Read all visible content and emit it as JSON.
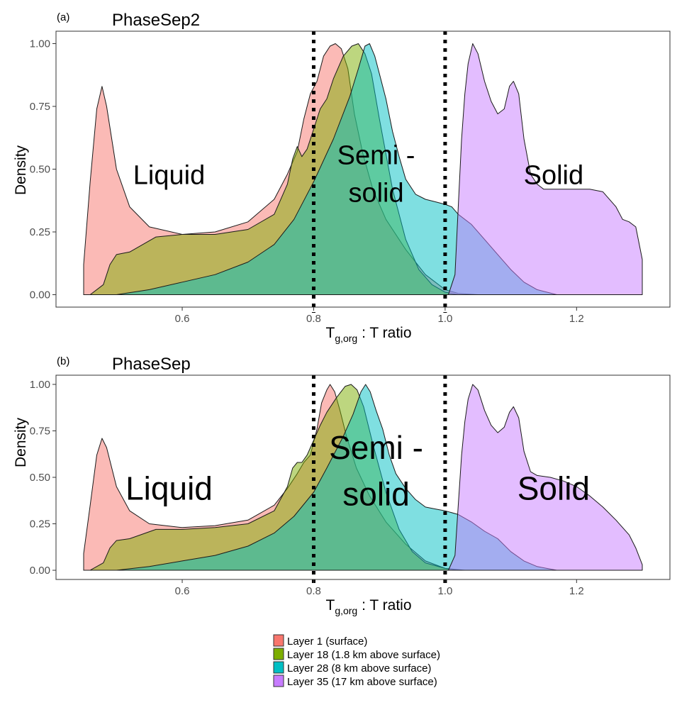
{
  "colors": {
    "series": [
      "#F8766D",
      "#7CAE00",
      "#00BFC4",
      "#C77CFF"
    ],
    "fill_opacity": 0.5,
    "threshold_line": "#000000",
    "panel_border": "#333333"
  },
  "legend": {
    "position": "bottom",
    "items": [
      "Layer 1 (surface)",
      "Layer 18 (1.8 km above surface)",
      "Layer 28 (8 km above surface)",
      "Layer 35 (17 km above surface)"
    ]
  },
  "chart_data": [
    {
      "type": "area",
      "panel_tag": "(a)",
      "title": "PhaseSep2",
      "xlabel_main": "T",
      "xlabel_sub": "g,org",
      "xlabel_rest": " : T ratio",
      "ylabel": "Density",
      "xlim": [
        0.45,
        1.3
      ],
      "ylim": [
        0,
        1.0
      ],
      "x_ticks": [
        "0.6",
        "0.8",
        "1.0",
        "1.2"
      ],
      "y_ticks": [
        "0.00",
        "0.25",
        "0.50",
        "0.75",
        "1.00"
      ],
      "grid": false,
      "thresholds": [
        0.8,
        1.0
      ],
      "regions": [
        {
          "label": "Liquid",
          "x": 0.58,
          "y": 0.44
        },
        {
          "label": "Semi -",
          "x": 0.895,
          "y": 0.52
        },
        {
          "label": "solid",
          "x": 0.895,
          "y": 0.37
        },
        {
          "label": "Solid",
          "x": 1.165,
          "y": 0.44
        }
      ],
      "series": [
        {
          "points": [
            [
              0.45,
              0.12
            ],
            [
              0.46,
              0.45
            ],
            [
              0.47,
              0.74
            ],
            [
              0.478,
              0.83
            ],
            [
              0.485,
              0.75
            ],
            [
              0.5,
              0.5
            ],
            [
              0.52,
              0.35
            ],
            [
              0.55,
              0.27
            ],
            [
              0.6,
              0.24
            ],
            [
              0.65,
              0.25
            ],
            [
              0.7,
              0.29
            ],
            [
              0.74,
              0.38
            ],
            [
              0.76,
              0.48
            ],
            [
              0.775,
              0.57
            ],
            [
              0.785,
              0.7
            ],
            [
              0.795,
              0.8
            ],
            [
              0.805,
              0.85
            ],
            [
              0.815,
              0.95
            ],
            [
              0.825,
              0.99
            ],
            [
              0.833,
              1.0
            ],
            [
              0.842,
              0.98
            ],
            [
              0.852,
              0.9
            ],
            [
              0.862,
              0.72
            ],
            [
              0.875,
              0.56
            ],
            [
              0.89,
              0.42
            ],
            [
              0.91,
              0.3
            ],
            [
              0.94,
              0.18
            ],
            [
              0.97,
              0.08
            ],
            [
              1.0,
              0.02
            ],
            [
              1.02,
              0.005
            ],
            [
              1.05,
              0.0
            ]
          ]
        },
        {
          "points": [
            [
              0.45,
              0.0
            ],
            [
              0.46,
              0.0
            ],
            [
              0.48,
              0.04
            ],
            [
              0.49,
              0.12
            ],
            [
              0.5,
              0.16
            ],
            [
              0.52,
              0.17
            ],
            [
              0.56,
              0.23
            ],
            [
              0.6,
              0.24
            ],
            [
              0.65,
              0.24
            ],
            [
              0.7,
              0.26
            ],
            [
              0.74,
              0.32
            ],
            [
              0.76,
              0.44
            ],
            [
              0.768,
              0.54
            ],
            [
              0.775,
              0.59
            ],
            [
              0.782,
              0.55
            ],
            [
              0.79,
              0.58
            ],
            [
              0.8,
              0.66
            ],
            [
              0.81,
              0.74
            ],
            [
              0.82,
              0.78
            ],
            [
              0.83,
              0.86
            ],
            [
              0.845,
              0.95
            ],
            [
              0.858,
              0.99
            ],
            [
              0.868,
              1.0
            ],
            [
              0.878,
              0.96
            ],
            [
              0.888,
              0.88
            ],
            [
              0.9,
              0.7
            ],
            [
              0.92,
              0.42
            ],
            [
              0.94,
              0.22
            ],
            [
              0.96,
              0.1
            ],
            [
              0.98,
              0.04
            ],
            [
              1.0,
              0.01
            ],
            [
              1.02,
              0.0
            ]
          ]
        },
        {
          "points": [
            [
              0.45,
              0.0
            ],
            [
              0.5,
              0.0
            ],
            [
              0.55,
              0.02
            ],
            [
              0.6,
              0.05
            ],
            [
              0.65,
              0.08
            ],
            [
              0.7,
              0.13
            ],
            [
              0.74,
              0.2
            ],
            [
              0.77,
              0.3
            ],
            [
              0.8,
              0.45
            ],
            [
              0.83,
              0.62
            ],
            [
              0.855,
              0.79
            ],
            [
              0.868,
              0.9
            ],
            [
              0.878,
              0.99
            ],
            [
              0.885,
              1.0
            ],
            [
              0.893,
              0.95
            ],
            [
              0.9,
              0.88
            ],
            [
              0.91,
              0.78
            ],
            [
              0.92,
              0.65
            ],
            [
              0.93,
              0.55
            ],
            [
              0.94,
              0.46
            ],
            [
              0.955,
              0.4
            ],
            [
              0.97,
              0.38
            ],
            [
              0.985,
              0.37
            ],
            [
              1.0,
              0.36
            ],
            [
              1.01,
              0.35
            ],
            [
              1.02,
              0.32
            ],
            [
              1.04,
              0.28
            ],
            [
              1.06,
              0.22
            ],
            [
              1.08,
              0.16
            ],
            [
              1.1,
              0.1
            ],
            [
              1.12,
              0.05
            ],
            [
              1.14,
              0.02
            ],
            [
              1.17,
              0.0
            ]
          ]
        },
        {
          "points": [
            [
              0.995,
              0.0
            ],
            [
              1.005,
              0.0
            ],
            [
              1.015,
              0.08
            ],
            [
              1.02,
              0.35
            ],
            [
              1.025,
              0.62
            ],
            [
              1.03,
              0.8
            ],
            [
              1.035,
              0.92
            ],
            [
              1.042,
              1.0
            ],
            [
              1.05,
              0.96
            ],
            [
              1.06,
              0.85
            ],
            [
              1.07,
              0.77
            ],
            [
              1.08,
              0.72
            ],
            [
              1.09,
              0.74
            ],
            [
              1.098,
              0.83
            ],
            [
              1.104,
              0.85
            ],
            [
              1.112,
              0.8
            ],
            [
              1.12,
              0.62
            ],
            [
              1.13,
              0.48
            ],
            [
              1.14,
              0.44
            ],
            [
              1.15,
              0.42
            ],
            [
              1.18,
              0.42
            ],
            [
              1.2,
              0.42
            ],
            [
              1.22,
              0.42
            ],
            [
              1.24,
              0.41
            ],
            [
              1.26,
              0.35
            ],
            [
              1.27,
              0.3
            ],
            [
              1.28,
              0.29
            ],
            [
              1.29,
              0.27
            ],
            [
              1.3,
              0.14
            ],
            [
              1.3,
              0.0
            ]
          ]
        }
      ]
    },
    {
      "type": "area",
      "panel_tag": "(b)",
      "title": "PhaseSep",
      "xlabel_main": "T",
      "xlabel_sub": "g,org",
      "xlabel_rest": " : T ratio",
      "ylabel": "Density",
      "xlim": [
        0.45,
        1.3
      ],
      "ylim": [
        0,
        1.0
      ],
      "x_ticks": [
        "0.6",
        "0.8",
        "1.0",
        "1.2"
      ],
      "y_ticks": [
        "0.00",
        "0.25",
        "0.50",
        "0.75",
        "1.00"
      ],
      "grid": false,
      "thresholds": [
        0.8,
        1.0
      ],
      "regions": [
        {
          "label": "Liquid",
          "x": 0.58,
          "y": 0.38
        },
        {
          "label": "Semi -",
          "x": 0.895,
          "y": 0.6
        },
        {
          "label": "solid",
          "x": 0.895,
          "y": 0.35
        },
        {
          "label": "Solid",
          "x": 1.165,
          "y": 0.38
        }
      ],
      "series": [
        {
          "points": [
            [
              0.45,
              0.09
            ],
            [
              0.46,
              0.35
            ],
            [
              0.47,
              0.62
            ],
            [
              0.478,
              0.71
            ],
            [
              0.485,
              0.66
            ],
            [
              0.5,
              0.45
            ],
            [
              0.52,
              0.32
            ],
            [
              0.55,
              0.25
            ],
            [
              0.6,
              0.23
            ],
            [
              0.65,
              0.24
            ],
            [
              0.7,
              0.27
            ],
            [
              0.74,
              0.35
            ],
            [
              0.76,
              0.44
            ],
            [
              0.775,
              0.52
            ],
            [
              0.785,
              0.58
            ],
            [
              0.795,
              0.62
            ],
            [
              0.805,
              0.76
            ],
            [
              0.812,
              0.9
            ],
            [
              0.82,
              0.97
            ],
            [
              0.825,
              1.0
            ],
            [
              0.832,
              0.96
            ],
            [
              0.84,
              0.86
            ],
            [
              0.85,
              0.72
            ],
            [
              0.865,
              0.55
            ],
            [
              0.885,
              0.4
            ],
            [
              0.91,
              0.26
            ],
            [
              0.94,
              0.14
            ],
            [
              0.97,
              0.05
            ],
            [
              1.0,
              0.01
            ],
            [
              1.03,
              0.0
            ]
          ]
        },
        {
          "points": [
            [
              0.45,
              0.0
            ],
            [
              0.46,
              0.0
            ],
            [
              0.48,
              0.04
            ],
            [
              0.49,
              0.12
            ],
            [
              0.5,
              0.16
            ],
            [
              0.52,
              0.17
            ],
            [
              0.56,
              0.22
            ],
            [
              0.6,
              0.22
            ],
            [
              0.65,
              0.23
            ],
            [
              0.7,
              0.25
            ],
            [
              0.74,
              0.32
            ],
            [
              0.76,
              0.45
            ],
            [
              0.768,
              0.55
            ],
            [
              0.775,
              0.58
            ],
            [
              0.782,
              0.58
            ],
            [
              0.79,
              0.62
            ],
            [
              0.8,
              0.7
            ],
            [
              0.81,
              0.78
            ],
            [
              0.82,
              0.85
            ],
            [
              0.835,
              0.93
            ],
            [
              0.848,
              0.99
            ],
            [
              0.857,
              1.0
            ],
            [
              0.866,
              0.97
            ],
            [
              0.876,
              0.88
            ],
            [
              0.89,
              0.68
            ],
            [
              0.91,
              0.42
            ],
            [
              0.93,
              0.22
            ],
            [
              0.95,
              0.1
            ],
            [
              0.97,
              0.04
            ],
            [
              1.0,
              0.01
            ],
            [
              1.02,
              0.0
            ]
          ]
        },
        {
          "points": [
            [
              0.45,
              0.0
            ],
            [
              0.5,
              0.0
            ],
            [
              0.55,
              0.02
            ],
            [
              0.6,
              0.05
            ],
            [
              0.65,
              0.08
            ],
            [
              0.7,
              0.13
            ],
            [
              0.74,
              0.2
            ],
            [
              0.77,
              0.29
            ],
            [
              0.8,
              0.42
            ],
            [
              0.82,
              0.55
            ],
            [
              0.845,
              0.72
            ],
            [
              0.86,
              0.84
            ],
            [
              0.872,
              0.96
            ],
            [
              0.879,
              1.0
            ],
            [
              0.886,
              0.96
            ],
            [
              0.895,
              0.86
            ],
            [
              0.905,
              0.76
            ],
            [
              0.915,
              0.62
            ],
            [
              0.925,
              0.52
            ],
            [
              0.94,
              0.44
            ],
            [
              0.955,
              0.38
            ],
            [
              0.97,
              0.34
            ],
            [
              0.985,
              0.33
            ],
            [
              1.0,
              0.32
            ],
            [
              1.02,
              0.3
            ],
            [
              1.04,
              0.26
            ],
            [
              1.06,
              0.21
            ],
            [
              1.08,
              0.17
            ],
            [
              1.1,
              0.1
            ],
            [
              1.12,
              0.05
            ],
            [
              1.14,
              0.02
            ],
            [
              1.17,
              0.0
            ]
          ]
        },
        {
          "points": [
            [
              0.995,
              0.0
            ],
            [
              1.005,
              0.0
            ],
            [
              1.015,
              0.08
            ],
            [
              1.02,
              0.35
            ],
            [
              1.025,
              0.62
            ],
            [
              1.03,
              0.8
            ],
            [
              1.035,
              0.92
            ],
            [
              1.042,
              1.0
            ],
            [
              1.05,
              0.97
            ],
            [
              1.06,
              0.86
            ],
            [
              1.07,
              0.78
            ],
            [
              1.08,
              0.74
            ],
            [
              1.09,
              0.77
            ],
            [
              1.098,
              0.85
            ],
            [
              1.104,
              0.88
            ],
            [
              1.112,
              0.82
            ],
            [
              1.12,
              0.64
            ],
            [
              1.13,
              0.53
            ],
            [
              1.14,
              0.51
            ],
            [
              1.16,
              0.5
            ],
            [
              1.18,
              0.48
            ],
            [
              1.2,
              0.45
            ],
            [
              1.22,
              0.4
            ],
            [
              1.24,
              0.34
            ],
            [
              1.26,
              0.27
            ],
            [
              1.28,
              0.19
            ],
            [
              1.29,
              0.12
            ],
            [
              1.3,
              0.03
            ],
            [
              1.3,
              0.0
            ]
          ]
        }
      ]
    }
  ]
}
